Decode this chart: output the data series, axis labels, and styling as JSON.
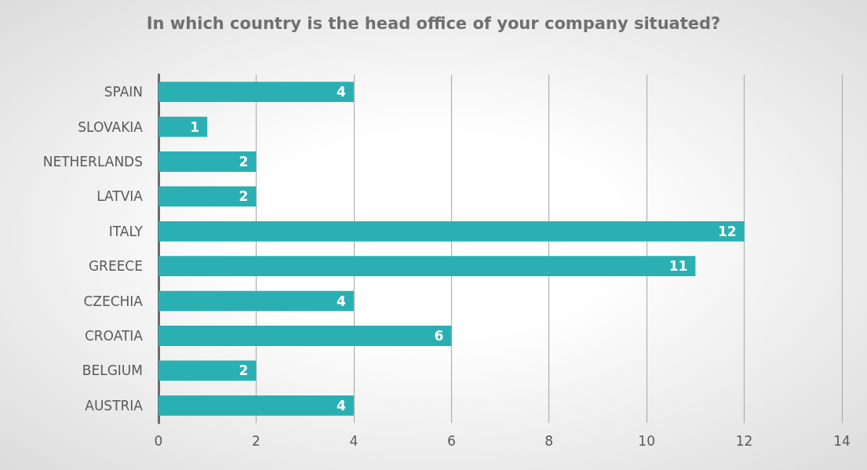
{
  "chart_data": {
    "type": "bar",
    "orientation": "horizontal",
    "title": "In which country is the head office of your company situated?",
    "categories": [
      "SPAIN",
      "SLOVAKIA",
      "NETHERLANDS",
      "LATVIA",
      "ITALY",
      "GREECE",
      "CZECHIA",
      "CROATIA",
      "BELGIUM",
      "AUSTRIA"
    ],
    "values": [
      4,
      1,
      2,
      2,
      12,
      11,
      4,
      6,
      2,
      4
    ],
    "color": "#2ab0b3",
    "xlim": [
      0,
      14
    ],
    "xticks": [
      0,
      2,
      4,
      6,
      8,
      10,
      12,
      14
    ],
    "grid": "x",
    "data_labels": true
  }
}
